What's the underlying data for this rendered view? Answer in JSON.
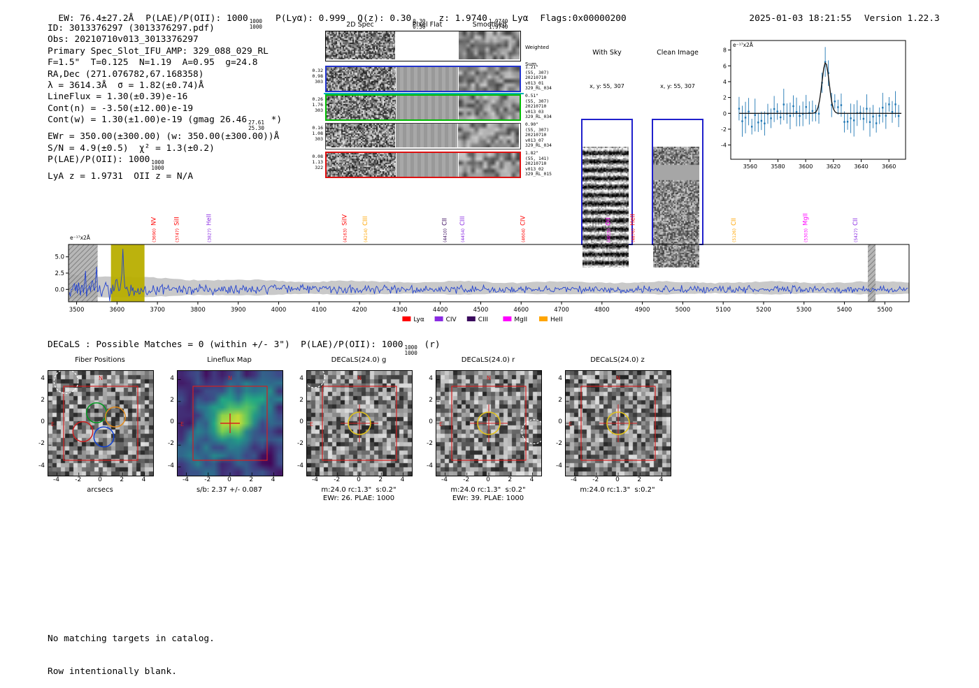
{
  "colors": {
    "spectrum_blue": "#2343cf",
    "point_blue": "#1f77b4",
    "band_gray": "#c9c9c9",
    "yellow_band": "#b8ae00",
    "panel_border_blue": "#2020cc",
    "teal_line": "#00b2b2",
    "marker_red": "#d42020",
    "circle_yellow": "#e2c41c",
    "row_borders": [
      "#2233cc",
      "#00bb00",
      "#3a3a3a",
      "#dd1111"
    ],
    "legend": {
      "lya": "#ff0000",
      "civ": "#8a2be2",
      "ciii": "#3a0a5d",
      "mgii": "#ff00ff",
      "heii": "#ffa500"
    }
  },
  "header": {
    "ew": "EW: 76.4±27.2Å",
    "plae_label": "P(LAE)/P(OII): 1000",
    "plae_hi": "1000",
    "plae_lo": "1000",
    "plya": "P(Lyα): 0.999",
    "qz_label": "Q(z): 0.30",
    "qz_hi": "0.30",
    "qz_lo": "0.30",
    "z_label": "z: 1.9740",
    "z_hi": "1.9740",
    "z_lo": "1.9740",
    "line_id": "Lyα",
    "flags": "Flags:0x00000200",
    "datetime": "2025-01-03 18:21:55",
    "version": "Version 1.22.3"
  },
  "info": {
    "lines": [
      [
        {
          "t": "ID: 3013376297 (3013376297.pdf)"
        }
      ],
      [
        {
          "t": "Obs: 20210710v013_3013376297"
        }
      ],
      [
        {
          "t": "Primary Spec_Slot_IFU_AMP: 329_088_029_RL"
        }
      ],
      [
        {
          "t": "F=1.5\"  T=0.125  N=1.19  A=0.95  g=24.8"
        }
      ],
      [
        {
          "t": "RA,Dec (271.076782,67.168358)"
        }
      ],
      [
        {
          "t": "λ = 3614.3Å  σ = 1.82(±0.74)Å"
        }
      ],
      [
        {
          "t": "LineFlux = 1.30(±0.39)e-16"
        }
      ],
      [
        {
          "t": "Cont(n) = -3.50(±12.00)e-19"
        }
      ],
      [
        {
          "t": "Cont(w) = 1.30(±1.00)e-19 (gmag 26.46"
        },
        {
          "hi": "27.61",
          "lo": "25.30"
        },
        {
          "t": " *)"
        }
      ],
      [
        {
          "t": "EWr = 350.00(±300.00) (w: 350.00(±300.00))Å"
        }
      ],
      [
        {
          "t": "S/N = 4.9(±0.5)  χ² = 1.3(±0.2)"
        }
      ],
      [
        {
          "t": "P(LAE)/P(OII): 1000"
        },
        {
          "hi": "1000",
          "lo": "1000"
        }
      ],
      [
        {
          "t": "LyA z = 1.9731  OII z = N/A"
        }
      ]
    ]
  },
  "spec2d": {
    "col_titles": [
      "2D Spec",
      "Pixel Flat",
      "Smoothed"
    ],
    "weighted_label_1": "Weighted",
    "weighted_label_2": "Sum",
    "rows": [
      {
        "left": [
          "0.32",
          "0.98",
          "303"
        ],
        "right": [
          "1.21\"",
          "(55, 307)",
          "20210710",
          "v013_01",
          "329_RL_034"
        ]
      },
      {
        "left": [
          "0.26",
          "1.76",
          "303"
        ],
        "right": [
          "0.51\"",
          "(55, 307)",
          "20210710",
          "v013_03",
          "329_RL_034"
        ]
      },
      {
        "left": [
          "0.16",
          "1.08",
          "303"
        ],
        "right": [
          "0.90\"",
          "(55, 307)",
          "20210710",
          "v013_07",
          "329_RL_034"
        ]
      },
      {
        "left": [
          "0.08",
          "1.13",
          "322"
        ],
        "right": [
          "1.82\"",
          "(55, 141)",
          "20210710",
          "v013_02",
          "329_RL_015"
        ]
      }
    ]
  },
  "with_sky": {
    "title": "With Sky",
    "subtitle": "x, y: 55, 307"
  },
  "clean_image": {
    "title": "Clean Image",
    "subtitle": "x, y: 55, 307"
  },
  "decals_line": {
    "prefix": "DECaLS : Possible Matches = 0 (within +/- 3\")  P(LAE)/P(OII): 1000",
    "hi": "1000",
    "lo": "1000",
    "suffix": " (r)"
  },
  "footer": {
    "lines": [
      "No matching targets in catalog.",
      "Row intentionally blank."
    ]
  },
  "chart_data": [
    {
      "id": "inset_fit",
      "type": "scatter",
      "description": "Gaussian emission-line fit at detection wavelength; blue errorbar flux points, black fit curve",
      "units_label": "e⁻¹⁷x2Å",
      "xlim": [
        3546,
        3672
      ],
      "x_ticks": [
        3560,
        3580,
        3600,
        3620,
        3640,
        3660
      ],
      "ylim": [
        -5.8,
        9.2
      ],
      "y_ticks": [
        -4,
        -2,
        0,
        2,
        4,
        6,
        8
      ],
      "fit": {
        "shape": "gaussian",
        "center": 3614.3,
        "sigma": 2.6,
        "amplitude": 6.4,
        "baseline": 0.0
      },
      "marker_color": "point_blue",
      "fit_color": "#1a1a1a"
    },
    {
      "id": "full_spectrum",
      "type": "line",
      "description": "Full 1D spectrum with gray error band, yellow detection band, hatched masked regions",
      "units_label": "e⁻¹⁷x2Å",
      "xlim": [
        3480,
        5560
      ],
      "x_ticks": [
        3500,
        3600,
        3700,
        3800,
        3900,
        4000,
        4100,
        4200,
        4300,
        4400,
        4500,
        4600,
        4700,
        4800,
        4900,
        5000,
        5100,
        5200,
        5300,
        5400,
        5500
      ],
      "ylim": [
        -1.9,
        6.9
      ],
      "y_ticks": [
        0.0,
        2.5,
        5.0
      ],
      "emission_peak": {
        "wavelength": 3614.3,
        "height": 5.3
      },
      "highlight_band": [
        3585,
        3668
      ],
      "hatched_bands": [
        [
          3480,
          3552
        ],
        [
          5458,
          5477
        ]
      ],
      "line_labels": [
        {
          "name": "NV",
          "wave": 3690,
          "color": "lya"
        },
        {
          "name": "SiII",
          "wave": 3747,
          "color": "lya"
        },
        {
          "name": "HeII",
          "wave": 3827,
          "color": "civ"
        },
        {
          "name": "SiIV",
          "wave": 4163,
          "color": "lya"
        },
        {
          "name": "CIII",
          "wave": 4214,
          "color": "heii"
        },
        {
          "name": "CII",
          "wave": 4410,
          "color": "ciii"
        },
        {
          "name": "CIII",
          "wave": 4454,
          "color": "civ"
        },
        {
          "name": "CIV",
          "wave": 4604,
          "color": "lya"
        },
        {
          "name": "OII",
          "wave": 4815,
          "color": "mgii"
        },
        {
          "name": "HeII",
          "wave": 4876,
          "color": "lya"
        },
        {
          "name": "CII",
          "wave": 5126,
          "color": "heii"
        },
        {
          "name": "MgII",
          "wave": 5303,
          "color": "mgii"
        },
        {
          "name": "CII",
          "wave": 5427,
          "color": "civ"
        }
      ],
      "legend": [
        {
          "label": "Lyα",
          "color": "lya"
        },
        {
          "label": "CIV",
          "color": "civ"
        },
        {
          "label": "CIII",
          "color": "ciii"
        },
        {
          "label": "MgII",
          "color": "mgii"
        },
        {
          "label": "HeII",
          "color": "heii"
        }
      ]
    },
    {
      "id": "cutouts",
      "type": "image_grid",
      "extent": [
        -4.8,
        4.8
      ],
      "tick_values": [
        -4,
        -2,
        0,
        2,
        4
      ],
      "compass": {
        "north": "N",
        "east": "E"
      },
      "panels": [
        {
          "style": "fibers",
          "title": "Fiber Positions",
          "xlabel": "arcsecs",
          "dashed_circle": {
            "x": 0.17,
            "y": 0.1,
            "r": 0.115
          },
          "fibers": [
            {
              "x": 0.46,
              "y": 0.4,
              "r": 0.095,
              "color": "#009a20"
            },
            {
              "x": 0.33,
              "y": 0.58,
              "r": 0.095,
              "color": "#cc2020"
            },
            {
              "x": 0.53,
              "y": 0.63,
              "r": 0.095,
              "color": "#1040d0"
            },
            {
              "x": 0.64,
              "y": 0.44,
              "r": 0.095,
              "color": "#e08a1e"
            }
          ]
        },
        {
          "style": "viridis",
          "title": "Lineflux Map",
          "caption": "s/b: 2.37 +/- 0.087"
        },
        {
          "style": "decals",
          "title": "DECaLS(24.0) g",
          "caption": "m:24.0 rc:1.3\"  s:0.2\"",
          "caption2": "EWr: 26. PLAE: 1000",
          "extra_circle": {
            "x": 0.07,
            "y": 0.06,
            "r": 0.1
          }
        },
        {
          "style": "decals",
          "title": "DECaLS(24.0) r",
          "caption": "m:24.0 rc:1.3\"  s:0.2\"",
          "caption2": "EWr: 39. PLAE: 1000",
          "extra_circle": {
            "x": 0.93,
            "y": 0.58,
            "r": 0.115
          }
        },
        {
          "style": "decals",
          "title": "DECaLS(24.0) z",
          "caption": "m:24.0 rc:1.3\"  s:0.2\""
        }
      ]
    }
  ]
}
